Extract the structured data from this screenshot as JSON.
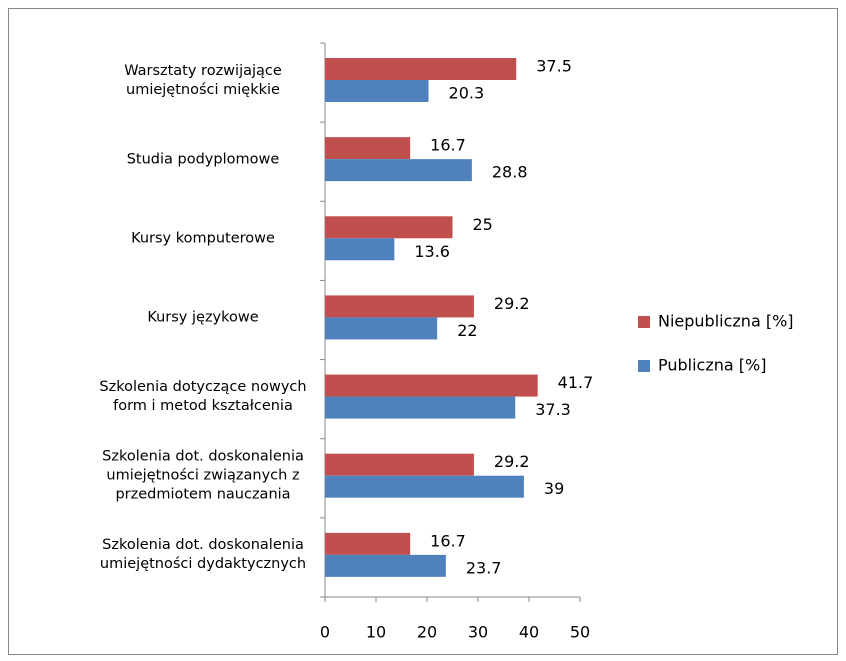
{
  "chart_data": {
    "type": "bar",
    "orientation": "horizontal",
    "categories": [
      "Warsztaty rozwijające umiejętności miękkie",
      "Studia podyplomowe",
      "Kursy komputerowe",
      "Kursy językowe",
      "Szkolenia dotyczące nowych form i metod kształcenia",
      "Szkolenia dot. doskonalenia umiejętności związanych z przedmiotem nauczania",
      "Szkolenia dot. doskonalenia umiejętności dydaktycznych"
    ],
    "series": [
      {
        "name": "Niepubliczna [%]",
        "color": "#c0504d",
        "values": [
          37.5,
          16.7,
          25,
          29.2,
          41.7,
          29.2,
          16.7
        ]
      },
      {
        "name": "Publiczna [%]",
        "color": "#4f81bd",
        "values": [
          20.3,
          28.8,
          13.6,
          22,
          37.3,
          39,
          23.7
        ]
      }
    ],
    "xlim": [
      0,
      50
    ],
    "xticks": [
      0,
      10,
      20,
      30,
      40,
      50
    ],
    "grid": false,
    "legend": "right"
  }
}
